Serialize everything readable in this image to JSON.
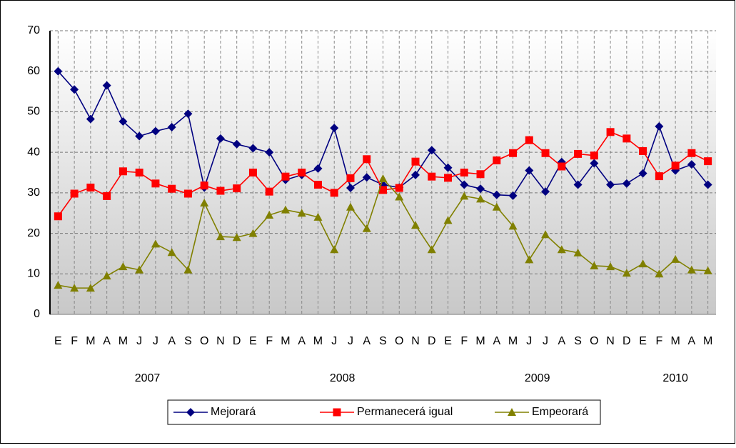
{
  "chart_data": {
    "type": "line",
    "categories": [
      "E",
      "F",
      "M",
      "A",
      "M",
      "J",
      "J",
      "A",
      "S",
      "O",
      "N",
      "D",
      "E",
      "F",
      "M",
      "A",
      "M",
      "J",
      "J",
      "A",
      "S",
      "O",
      "N",
      "D",
      "E",
      "F",
      "M",
      "A",
      "M",
      "J",
      "J",
      "A",
      "S",
      "O",
      "N",
      "D",
      "E",
      "F",
      "M",
      "A",
      "M"
    ],
    "year_labels": [
      "2007",
      "2008",
      "2009",
      "2010"
    ],
    "series": [
      {
        "name": "Mejorará",
        "color": "#000080",
        "marker": "diamond",
        "values": [
          60,
          55.5,
          48.2,
          56.5,
          47.6,
          44,
          45.2,
          46.2,
          49.5,
          31.3,
          43.4,
          42,
          41,
          40,
          33.2,
          34.4,
          36,
          46,
          31.2,
          33.8,
          32,
          31.3,
          34.4,
          40.5,
          36.2,
          32,
          31,
          29.5,
          29.3,
          35.5,
          30.3,
          37.6,
          32,
          37.3,
          32,
          32.3,
          34.8,
          46.4,
          35.5,
          37,
          32
        ]
      },
      {
        "name": "Permanecerá igual",
        "color": "#ff0000",
        "marker": "square",
        "values": [
          24.2,
          29.8,
          31.3,
          29.2,
          35.3,
          35,
          32.3,
          31,
          29.8,
          31.8,
          30.5,
          31.1,
          35,
          30.3,
          34,
          35,
          32,
          30,
          33.6,
          38.3,
          30.7,
          31.2,
          37.7,
          34,
          33.7,
          35,
          34.6,
          38,
          39.8,
          43,
          39.8,
          36.5,
          39.6,
          39.2,
          45,
          43.4,
          40.3,
          34.1,
          36.7,
          39.8,
          37.8
        ]
      },
      {
        "name": "Empeorará",
        "color": "#808000",
        "marker": "triangle",
        "values": [
          7.2,
          6.5,
          6.5,
          9.5,
          11.8,
          11,
          17.4,
          15.3,
          11,
          27.5,
          19.2,
          19,
          20,
          24.5,
          25.8,
          25,
          24,
          16,
          26.5,
          21.2,
          33.5,
          29,
          22,
          16,
          23.2,
          29.2,
          28.5,
          26.5,
          21.8,
          13.5,
          19.7,
          16,
          15.2,
          12,
          11.8,
          10.2,
          12.5,
          10,
          13.6,
          11,
          10.8
        ]
      }
    ],
    "ylim": [
      0,
      70
    ],
    "yticks": [
      0,
      10,
      20,
      30,
      40,
      50,
      60,
      70
    ],
    "grid": true,
    "legend": "bottom"
  }
}
